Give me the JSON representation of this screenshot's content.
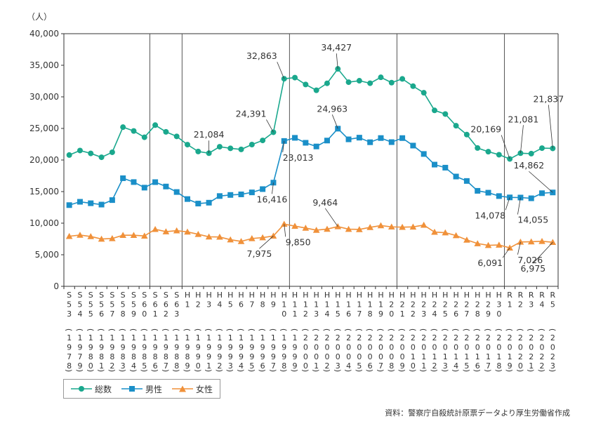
{
  "chart_data": {
    "type": "line",
    "unit_label": "（人）",
    "ylim": [
      0,
      40000
    ],
    "yticks": [
      "0",
      "5,000",
      "10,000",
      "15,000",
      "20,000",
      "25,000",
      "30,000",
      "35,000",
      "40,000"
    ],
    "era_labels": [
      "S53",
      "S54",
      "S55",
      "S56",
      "S57",
      "S58",
      "S59",
      "S60",
      "S61",
      "S62",
      "S63",
      "H1",
      "H2",
      "H3",
      "H4",
      "H5",
      "H6",
      "H7",
      "H8",
      "H9",
      "H10",
      "H11",
      "H12",
      "H13",
      "H14",
      "H15",
      "H16",
      "H17",
      "H18",
      "H19",
      "H20",
      "H21",
      "H22",
      "H23",
      "H24",
      "H25",
      "H26",
      "H27",
      "H28",
      "H29",
      "H30",
      "R1",
      "R2",
      "R3",
      "R4",
      "R5"
    ],
    "years": [
      "1978",
      "1979",
      "1980",
      "1981",
      "1982",
      "1983",
      "1984",
      "1985",
      "1986",
      "1987",
      "1988",
      "1989",
      "1990",
      "1991",
      "1992",
      "1993",
      "1994",
      "1995",
      "1996",
      "1997",
      "1998",
      "1999",
      "2000",
      "2001",
      "2002",
      "2003",
      "2004",
      "2005",
      "2006",
      "2007",
      "2008",
      "2009",
      "2010",
      "2011",
      "2012",
      "2013",
      "2014",
      "2015",
      "2016",
      "2017",
      "2018",
      "2019",
      "2020",
      "2021",
      "2022",
      "2023"
    ],
    "series": [
      {
        "name": "総数",
        "color": "#1aa88d",
        "marker": "circle",
        "values": [
          20788,
          21503,
          21048,
          20434,
          21228,
          25202,
          24596,
          23599,
          25524,
          24460,
          23742,
          22436,
          21346,
          21084,
          22104,
          21851,
          21679,
          22445,
          23104,
          24391,
          32863,
          33048,
          31957,
          31042,
          32143,
          34427,
          32325,
          32552,
          32155,
          33093,
          32249,
          32845,
          31690,
          30651,
          27858,
          27283,
          25427,
          24025,
          21897,
          21321,
          20840,
          20169,
          21081,
          21007,
          21881,
          21837
        ]
      },
      {
        "name": "男性",
        "color": "#1a8fc8",
        "marker": "square",
        "values": [
          12859,
          13386,
          13155,
          12942,
          13654,
          17116,
          16508,
          15624,
          16497,
          15802,
          14934,
          13818,
          13102,
          13242,
          14296,
          14468,
          14560,
          14874,
          15393,
          16416,
          23013,
          23512,
          22727,
          22144,
          23080,
          24963,
          23272,
          23540,
          22813,
          23478,
          22831,
          23472,
          22283,
          20955,
          19273,
          18787,
          17386,
          16681,
          15121,
          14826,
          14290,
          14078,
          14055,
          13939,
          14746,
          14862
        ]
      },
      {
        "name": "女性",
        "color": "#f0913a",
        "marker": "triangle",
        "values": [
          7929,
          8117,
          7893,
          7492,
          7574,
          8086,
          8088,
          7975,
          9027,
          8658,
          8808,
          8618,
          8244,
          7842,
          7808,
          7383,
          7119,
          7571,
          7711,
          7975,
          9850,
          9536,
          9230,
          8898,
          9063,
          9464,
          9053,
          9012,
          9342,
          9615,
          9418,
          9373,
          9407,
          9696,
          8585,
          8496,
          8041,
          7344,
          6776,
          6495,
          6550,
          6091,
          7026,
          7068,
          7135,
          6975
        ]
      }
    ],
    "annotations": [
      {
        "series": 0,
        "index": 13,
        "label": "21,084"
      },
      {
        "series": 0,
        "index": 19,
        "label": "24,391"
      },
      {
        "series": 0,
        "index": 20,
        "label": "32,863"
      },
      {
        "series": 0,
        "index": 25,
        "label": "34,427"
      },
      {
        "series": 0,
        "index": 41,
        "label": "20,169"
      },
      {
        "series": 0,
        "index": 42,
        "label": "21,081"
      },
      {
        "series": 0,
        "index": 45,
        "label": "21,837"
      },
      {
        "series": 1,
        "index": 19,
        "label": "16,416"
      },
      {
        "series": 1,
        "index": 20,
        "label": "23,013"
      },
      {
        "series": 1,
        "index": 25,
        "label": "24,963"
      },
      {
        "series": 1,
        "index": 41,
        "label": "14,078"
      },
      {
        "series": 1,
        "index": 42,
        "label": "14,055"
      },
      {
        "series": 1,
        "index": 45,
        "label": "14,862"
      },
      {
        "series": 2,
        "index": 19,
        "label": "7,975"
      },
      {
        "series": 2,
        "index": 20,
        "label": "9,850"
      },
      {
        "series": 2,
        "index": 25,
        "label": "9,464"
      },
      {
        "series": 2,
        "index": 41,
        "label": "6,091"
      },
      {
        "series": 2,
        "index": 42,
        "label": "7,026"
      },
      {
        "series": 2,
        "index": 45,
        "label": "6,975"
      }
    ],
    "legend": {
      "position": "bottom-left",
      "items": [
        "総数",
        "男性",
        "女性"
      ]
    },
    "grid": "vertical-lines",
    "source": "資料：警察庁自殺統計原票データより厚生労働省作成"
  }
}
